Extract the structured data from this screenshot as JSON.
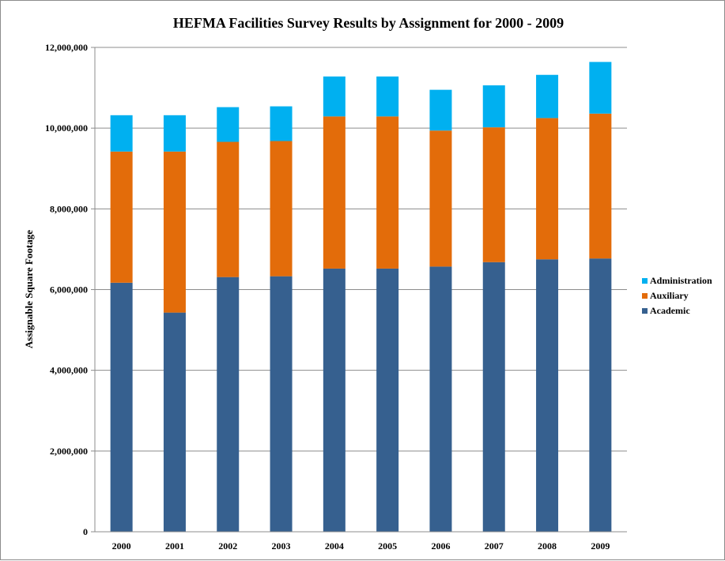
{
  "chart_data": {
    "type": "bar",
    "stacked": true,
    "title": "HEFMA Facilities Survey Results by Assignment for 2000 - 2009",
    "ylabel": "Assignable Square Footage",
    "xlabel": "",
    "ylim": [
      0,
      12000000
    ],
    "yticks": [
      0,
      2000000,
      4000000,
      6000000,
      8000000,
      10000000,
      12000000
    ],
    "ytick_labels": [
      "0",
      "2,000,000",
      "4,000,000",
      "6,000,000",
      "8,000,000",
      "10,000,000",
      "12,000,000"
    ],
    "grid": true,
    "legend_position": "right",
    "categories": [
      "2000",
      "2001",
      "2002",
      "2003",
      "2004",
      "2005",
      "2006",
      "2007",
      "2008",
      "2009"
    ],
    "series": [
      {
        "name": "Academic",
        "color": "#36608F",
        "values": [
          6170000,
          5430000,
          6310000,
          6330000,
          6520000,
          6520000,
          6570000,
          6680000,
          6750000,
          6770000
        ]
      },
      {
        "name": "Auxiliary",
        "color": "#E36C0A",
        "values": [
          3250000,
          3990000,
          3350000,
          3350000,
          3770000,
          3770000,
          3370000,
          3340000,
          3500000,
          3590000
        ]
      },
      {
        "name": "Administration",
        "color": "#00B0F0",
        "values": [
          900000,
          900000,
          860000,
          860000,
          990000,
          990000,
          1010000,
          1040000,
          1070000,
          1280000
        ]
      }
    ]
  }
}
